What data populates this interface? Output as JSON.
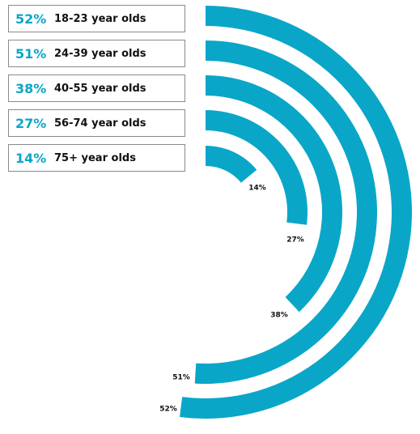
{
  "chart_data": {
    "type": "radial-bar",
    "max": 100,
    "color": "#0aa6c8",
    "series": [
      {
        "category": "18-23 year olds",
        "value": 52,
        "value_label": "52%",
        "legend_value": "52%"
      },
      {
        "category": "24-39 year olds",
        "value": 51,
        "value_label": "51%",
        "legend_value": "51%"
      },
      {
        "category": "40-55 year olds",
        "value": 38,
        "value_label": "38%",
        "legend_value": "38%"
      },
      {
        "category": "56-74 year olds",
        "value": 27,
        "value_label": "27%",
        "legend_value": "27%"
      },
      {
        "category": "75+ year olds",
        "value": 14,
        "value_label": "14%",
        "legend_value": "14%"
      }
    ]
  }
}
